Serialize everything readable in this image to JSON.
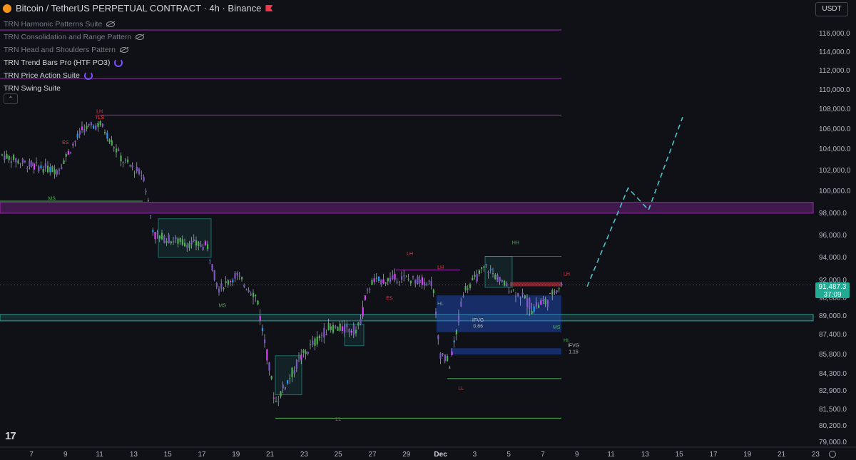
{
  "header": {
    "title": "Bitcoin / TetherUS PERPETUAL CONTRACT · 4h · Binance"
  },
  "indicators": [
    {
      "label": "TRN Harmonic Patterns Suite",
      "visible": false
    },
    {
      "label": "TRN Consolidation and Range Pattern",
      "visible": false
    },
    {
      "label": "TRN Head and Shoulders Pattern",
      "visible": false
    },
    {
      "label": "TRN Trend Bars Pro (HTF PO3)",
      "visible": true
    },
    {
      "label": "TRN Price Action Suite",
      "visible": true
    },
    {
      "label": "TRN Swing Suite",
      "visible": true
    }
  ],
  "currency": "USDT",
  "collapse_label": "⌃",
  "logo_text": "17",
  "current_price": {
    "value": "91,487.3",
    "countdown": "37:09"
  },
  "colors": {
    "background": "#0f1117",
    "bull": "#4caf50",
    "bear": "#9c27b0",
    "accent": "#22ab94",
    "resistance": "#9c27b0",
    "support": "#26a69a"
  },
  "chart_data": {
    "type": "candlestick",
    "price_axis": {
      "ticks": [
        "116,000.0",
        "114,000.0",
        "112,000.0",
        "110,000.0",
        "108,000.0",
        "106,000.0",
        "104,000.0",
        "102,000.0",
        "100,000.0",
        "98,000.0",
        "96,000.0",
        "94,000.0",
        "92,000.0",
        "90,000.0",
        "89,000.0",
        "87,400.0",
        "85,800.0",
        "84,300.0",
        "82,900.0",
        "81,500.0",
        "80,200.0",
        "79,000.0"
      ],
      "tick_values": [
        116000,
        114000,
        112000,
        110000,
        108000,
        106000,
        104000,
        102000,
        100000,
        98000,
        96000,
        94000,
        92000,
        90000,
        89000,
        87400,
        85800,
        84300,
        82900,
        81500,
        80200,
        79000
      ]
    },
    "time_axis": {
      "ticks": [
        "7",
        "9",
        "11",
        "13",
        "15",
        "17",
        "19",
        "21",
        "23",
        "25",
        "27",
        "29",
        "Dec",
        "3",
        "5",
        "7",
        "9",
        "11",
        "13",
        "15",
        "17",
        "19",
        "21",
        "23"
      ]
    },
    "swing_labels": [
      {
        "text": "LH",
        "price": 107600,
        "tick": 2
      },
      {
        "text": "TLS",
        "price": 107000,
        "tick": 2
      },
      {
        "text": "ES",
        "price": 104500,
        "tick": 1
      },
      {
        "text": "MS",
        "price": 99200,
        "tick": 0.6
      },
      {
        "text": "MS",
        "price": 89500,
        "tick": 5.6
      },
      {
        "text": "LL",
        "price": 80600,
        "tick": 9
      },
      {
        "text": "ES",
        "price": 89900,
        "tick": 10.5
      },
      {
        "text": "LH",
        "price": 94200,
        "tick": 11.1
      },
      {
        "text": "LH",
        "price": 93000,
        "tick": 12
      },
      {
        "text": "HL",
        "price": 89600,
        "tick": 12
      },
      {
        "text": "HH",
        "price": 95200,
        "tick": 14.2
      },
      {
        "text": "LH",
        "price": 92400,
        "tick": 15.7
      },
      {
        "text": "MS",
        "price": 87900,
        "tick": 15.4
      },
      {
        "text": "HL",
        "price": 86800,
        "tick": 15.7
      },
      {
        "text": "LL",
        "price": 83000,
        "tick": 12.6
      },
      {
        "text": "IFVG",
        "price": 86400,
        "tick": 15.9
      },
      {
        "text": "1.16",
        "price": 85900,
        "tick": 15.9
      },
      {
        "text": "IFVG",
        "price": 88500,
        "tick": 13.1
      },
      {
        "text": "0.66",
        "price": 88000,
        "tick": 13.1
      }
    ],
    "levels": [
      {
        "name": "resistance-zone",
        "from": 98200,
        "to": 98800
      },
      {
        "name": "support-zone",
        "from": 88700,
        "to": 89000
      }
    ],
    "projection": [
      {
        "tick": 16.3,
        "price": 91300
      },
      {
        "tick": 17.5,
        "price": 100300
      },
      {
        "tick": 18.1,
        "price": 98300
      },
      {
        "tick": 19.1,
        "price": 107200
      }
    ]
  }
}
